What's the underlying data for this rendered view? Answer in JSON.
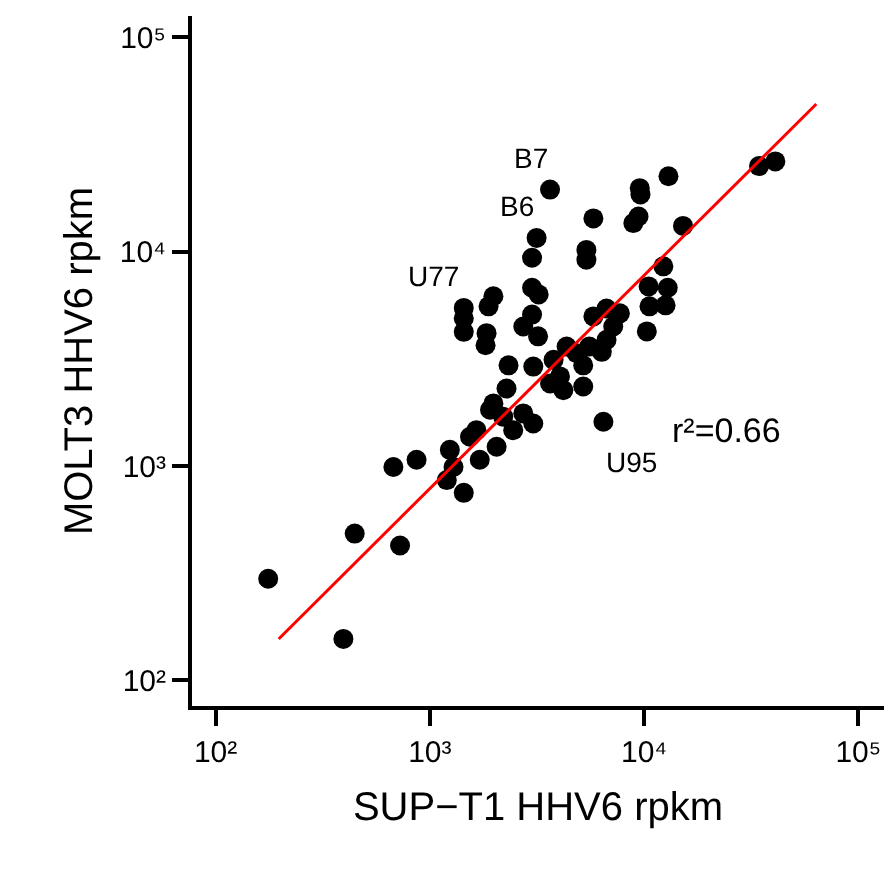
{
  "chart_data": {
    "type": "scatter",
    "xlabel": "SUP−T1 HHV6 rpkm",
    "ylabel": "MOLT3 HHV6 rpkm",
    "log": "xy",
    "marker": "circle",
    "xlim": [
      77.6,
      131800
    ],
    "ylim": [
      75.9,
      125900
    ],
    "xticks": [
      {
        "value": 100,
        "label": "10²"
      },
      {
        "value": 1000,
        "label": "10³"
      },
      {
        "value": 10000,
        "label": "10⁴"
      },
      {
        "value": 100000,
        "label": "10⁵"
      }
    ],
    "yticks": [
      {
        "value": 100,
        "label": "10²"
      },
      {
        "value": 1000,
        "label": "10³"
      },
      {
        "value": 10000,
        "label": "10⁴"
      },
      {
        "value": 100000,
        "label": "10⁵"
      }
    ],
    "series": [
      {
        "color": "#000000",
        "x": [
          3150,
          3000,
          3640,
          5800,
          5380,
          5380,
          9550,
          9620,
          13000,
          8910,
          9420,
          15200,
          34400,
          41000,
          12300,
          10500,
          12900,
          3000,
          1980,
          1880,
          1440,
          1440,
          1440,
          1840,
          1820,
          3220,
          3000,
          2730,
          3200,
          2330,
          5800,
          6680,
          7710,
          7180,
          6680,
          6350,
          10600,
          12600,
          10300,
          5550,
          4840,
          4350,
          3780,
          3040,
          4050,
          5200,
          3640,
          4200,
          5200,
          2280,
          1980,
          1910,
          2200,
          2730,
          3040,
          2450,
          2050,
          1650,
          1540,
          1710,
          1240,
          1290,
          1200,
          1440,
          867,
          676,
          6460,
          446,
          726,
          176,
          395
        ],
        "values": [
          11600,
          9380,
          19500,
          14300,
          10200,
          9180,
          19800,
          18500,
          22500,
          13600,
          14600,
          13200,
          25100,
          26400,
          8550,
          6890,
          6790,
          6790,
          6200,
          5560,
          5470,
          4890,
          4230,
          4170,
          3660,
          6320,
          5090,
          4480,
          4030,
          2950,
          4990,
          5430,
          5160,
          4480,
          3880,
          3410,
          5560,
          5620,
          4250,
          3610,
          3360,
          3610,
          3130,
          2910,
          2620,
          2950,
          2430,
          2260,
          2350,
          2300,
          1960,
          1830,
          1700,
          1760,
          1580,
          1470,
          1230,
          1470,
          1370,
          1070,
          1190,
          990,
          860,
          750,
          1070,
          990,
          1610,
          484,
          426,
          298,
          156
        ]
      },
      {
        "type": "line",
        "color": "#ff0000",
        "marker": "none",
        "line_style": "solid",
        "x": [
          197,
          63700
        ],
        "values": [
          156,
          48900
        ]
      }
    ],
    "annotations": [
      {
        "text": "B7",
        "x": 3640,
        "y": 19500
      },
      {
        "text": "B6",
        "x": 3150,
        "y": 11600
      },
      {
        "text": "U77",
        "x": 1440,
        "y": 5470
      },
      {
        "text": "U95",
        "x": 6460,
        "y": 1610
      },
      "r²=0.66"
    ]
  }
}
